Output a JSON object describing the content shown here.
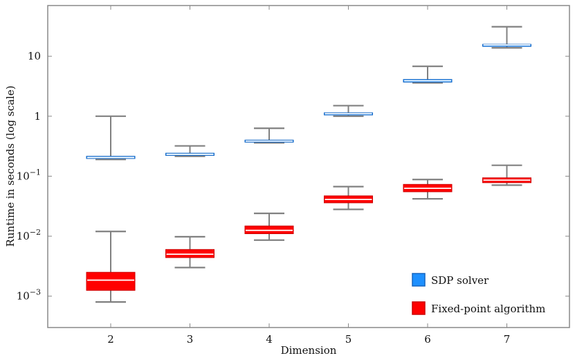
{
  "chart_data": {
    "type": "box",
    "title": "",
    "xlabel": "Dimension",
    "ylabel": "Runtime in seconds (log scale)",
    "yscale": "log",
    "ylim": [
      0.0003,
      70
    ],
    "x_categories": [
      "2",
      "3",
      "4",
      "5",
      "6",
      "7"
    ],
    "y_ticks": [
      {
        "value": 0.001,
        "base": "10",
        "exp": "−3",
        "label": ""
      },
      {
        "value": 0.01,
        "base": "10",
        "exp": "−2",
        "label": ""
      },
      {
        "value": 0.1,
        "base": "10",
        "exp": "−1",
        "label": ""
      },
      {
        "value": 1,
        "base": "",
        "exp": "",
        "label": "1"
      },
      {
        "value": 10,
        "base": "",
        "exp": "",
        "label": "10"
      }
    ],
    "grid": false,
    "legend_position": "bottom-right",
    "series": [
      {
        "name": "SDP solver",
        "color": "#1e90ff",
        "edge": "#1565c0",
        "boxes": [
          {
            "x": "2",
            "whisker_low": 0.19,
            "q1": 0.197,
            "median": 0.205,
            "q3": 0.215,
            "whisker_high": 1.0
          },
          {
            "x": "3",
            "whisker_low": 0.215,
            "q1": 0.222,
            "median": 0.232,
            "q3": 0.242,
            "whisker_high": 0.32
          },
          {
            "x": "4",
            "whisker_low": 0.36,
            "q1": 0.37,
            "median": 0.385,
            "q3": 0.4,
            "whisker_high": 0.63
          },
          {
            "x": "5",
            "whisker_low": 1.0,
            "q1": 1.05,
            "median": 1.1,
            "q3": 1.14,
            "whisker_high": 1.5
          },
          {
            "x": "6",
            "whisker_low": 3.6,
            "q1": 3.7,
            "median": 3.9,
            "q3": 4.1,
            "whisker_high": 6.8
          },
          {
            "x": "7",
            "whisker_low": 13.8,
            "q1": 15.0,
            "median": 15.4,
            "q3": 15.8,
            "whisker_high": 31.0
          }
        ]
      },
      {
        "name": "Fixed-point algorithm",
        "color": "#ff0000",
        "edge": "#cc0000",
        "boxes": [
          {
            "x": "2",
            "whisker_low": 0.0008,
            "q1": 0.00125,
            "median": 0.00185,
            "q3": 0.0025,
            "whisker_high": 0.012
          },
          {
            "x": "3",
            "whisker_low": 0.003,
            "q1": 0.0044,
            "median": 0.005,
            "q3": 0.006,
            "whisker_high": 0.0098
          },
          {
            "x": "4",
            "whisker_low": 0.0086,
            "q1": 0.011,
            "median": 0.0125,
            "q3": 0.0148,
            "whisker_high": 0.024
          },
          {
            "x": "5",
            "whisker_low": 0.028,
            "q1": 0.036,
            "median": 0.041,
            "q3": 0.047,
            "whisker_high": 0.067
          },
          {
            "x": "6",
            "whisker_low": 0.042,
            "q1": 0.055,
            "median": 0.063,
            "q3": 0.073,
            "whisker_high": 0.088
          },
          {
            "x": "7",
            "whisker_low": 0.071,
            "q1": 0.078,
            "median": 0.086,
            "q3": 0.094,
            "whisker_high": 0.152
          }
        ]
      }
    ]
  }
}
